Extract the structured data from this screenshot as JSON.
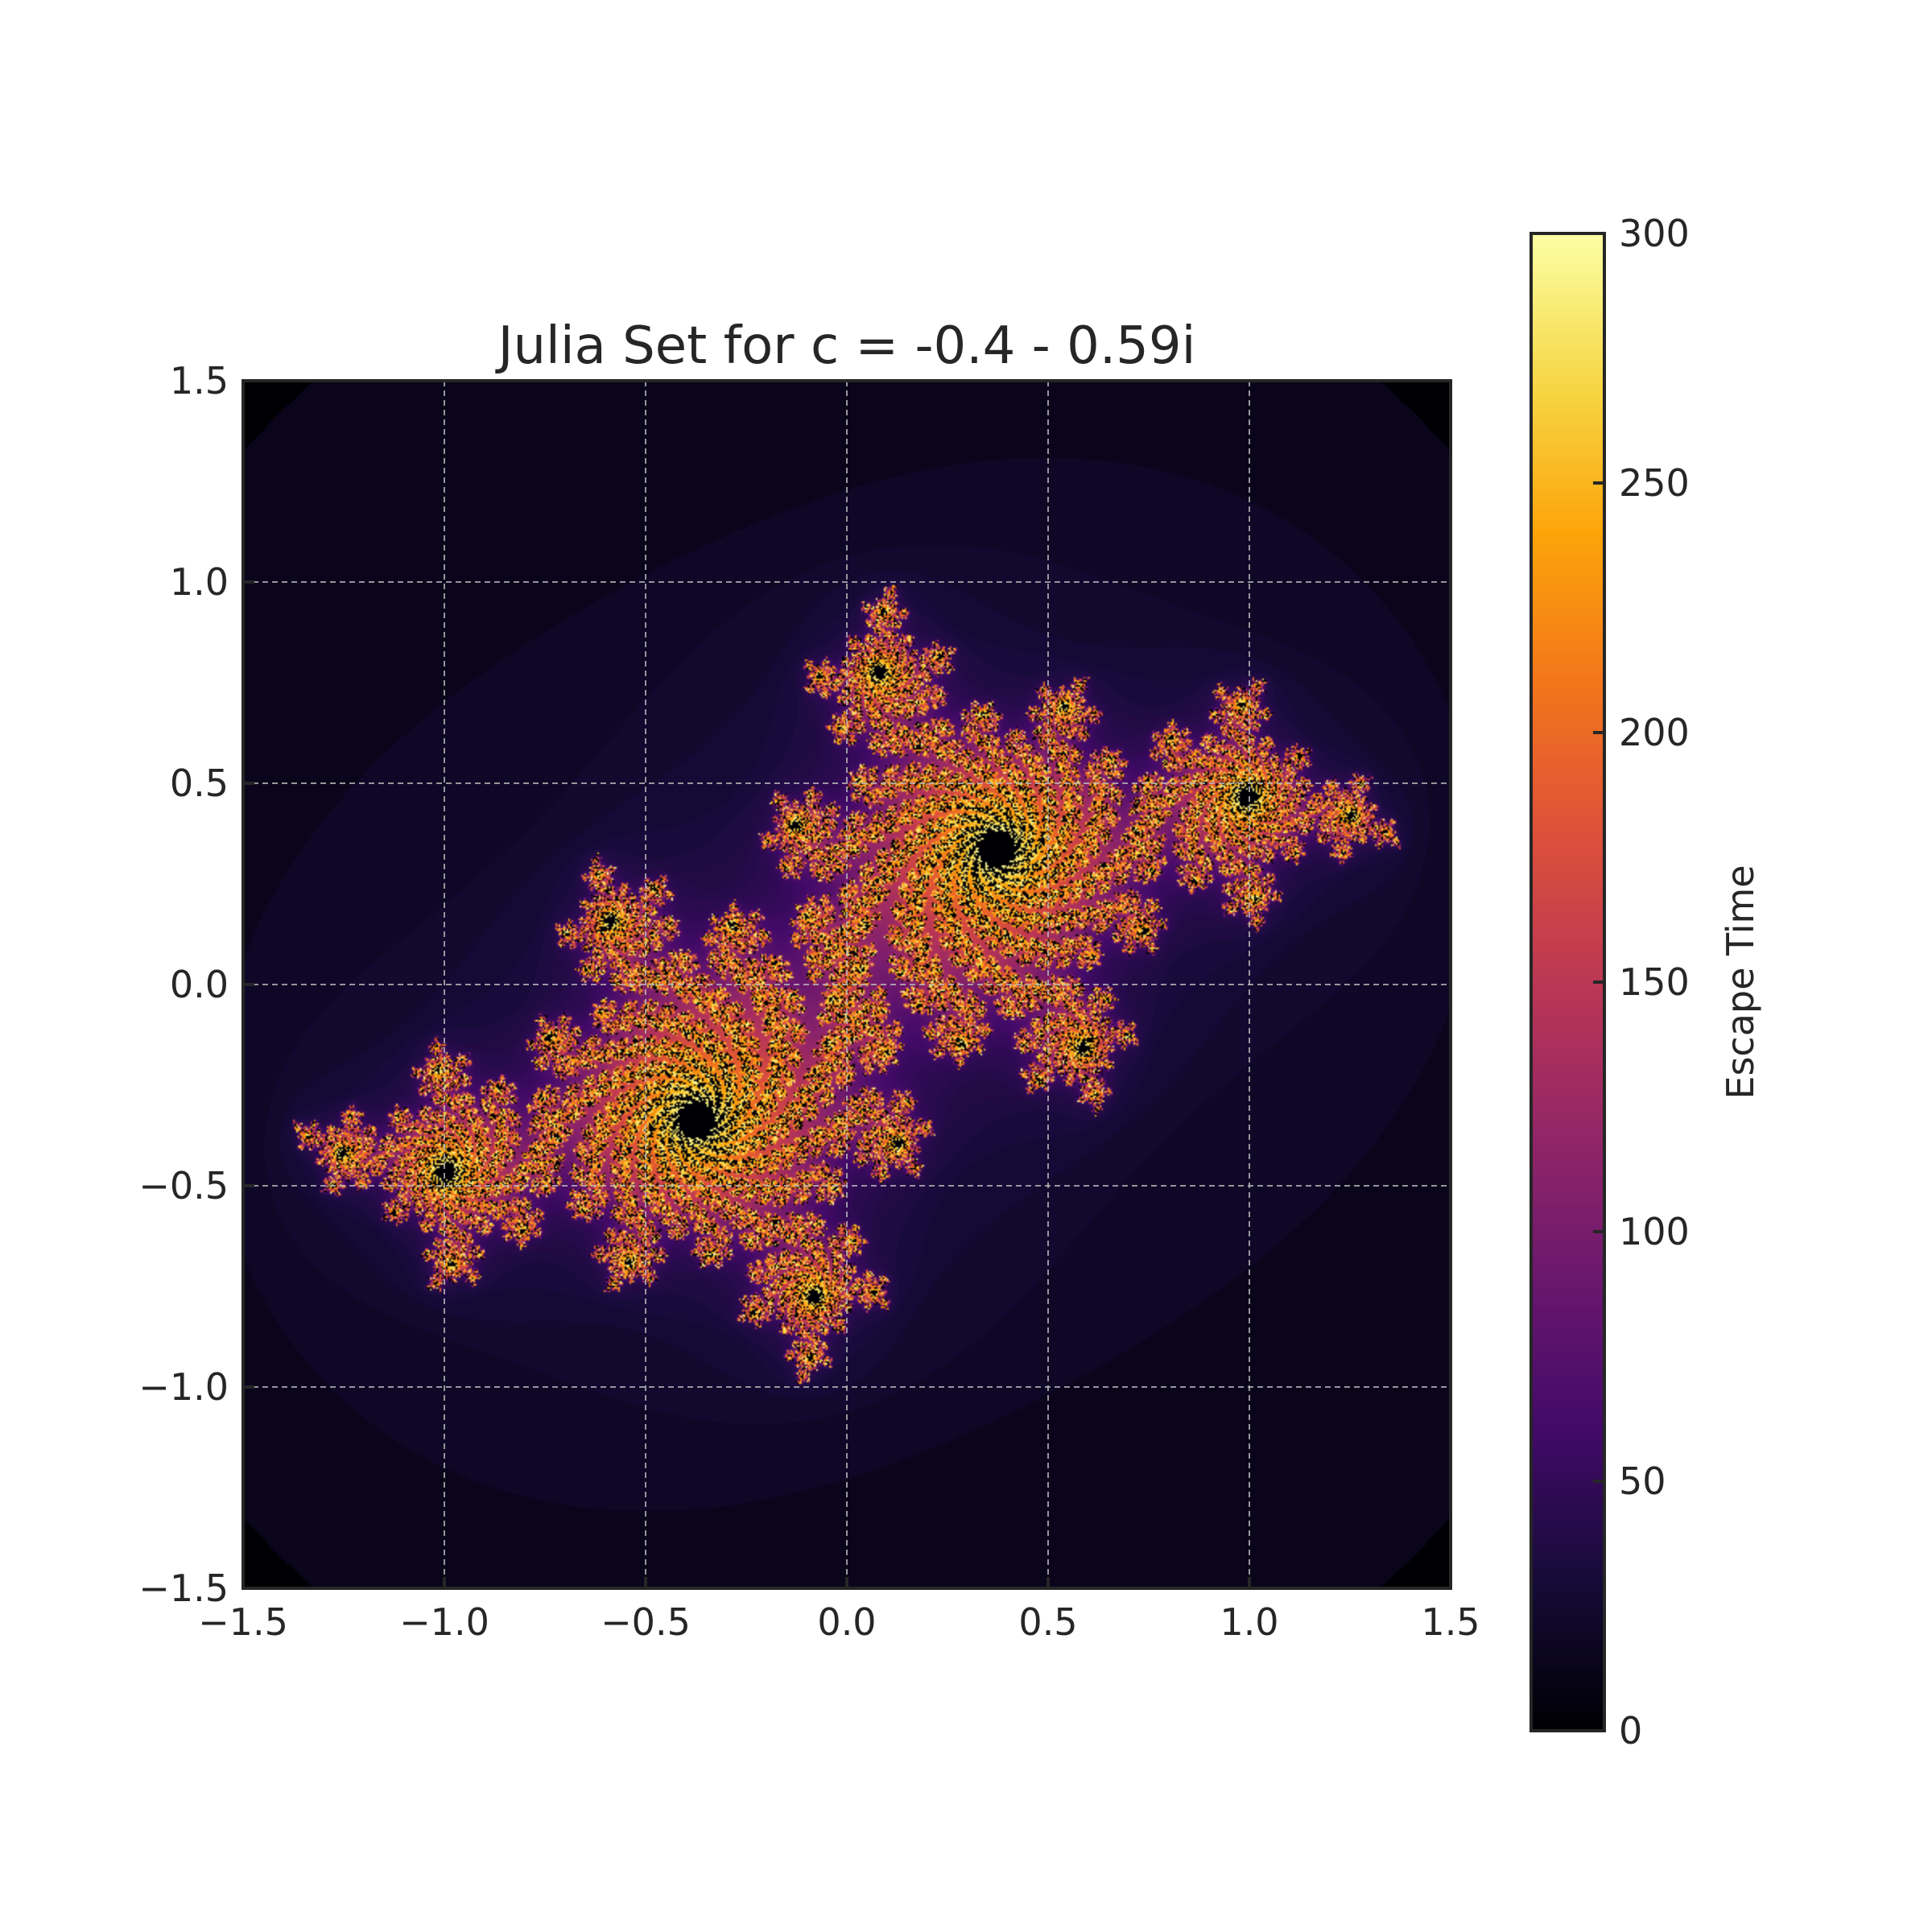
{
  "chart_data": {
    "type": "heatmap",
    "title": "Julia Set for c = -0.4 - 0.59i",
    "c": {
      "re": -0.4,
      "im": -0.59
    },
    "xlim": [
      -1.5,
      1.5
    ],
    "ylim": [
      -1.5,
      1.5
    ],
    "xticks": [
      -1.5,
      -1.0,
      -0.5,
      0.0,
      0.5,
      1.0,
      1.5
    ],
    "yticks": [
      -1.5,
      -1.0,
      -0.5,
      0.0,
      0.5,
      1.0,
      1.5
    ],
    "xtick_labels": [
      "−1.5",
      "−1.0",
      "−0.5",
      "0.0",
      "0.5",
      "1.0",
      "1.5"
    ],
    "ytick_labels": [
      "−1.5",
      "−1.0",
      "−0.5",
      "0.0",
      "0.5",
      "1.0",
      "1.5"
    ],
    "max_iterations": 300,
    "grid": true,
    "grid_color": "#bbbbbb",
    "colormap": "inferno",
    "colorbar": {
      "label": "Escape Time",
      "range": [
        0,
        300
      ],
      "ticks": [
        0,
        50,
        100,
        150,
        200,
        250,
        300
      ],
      "tick_labels": [
        "0",
        "50",
        "100",
        "150",
        "200",
        "250",
        "300"
      ]
    }
  }
}
